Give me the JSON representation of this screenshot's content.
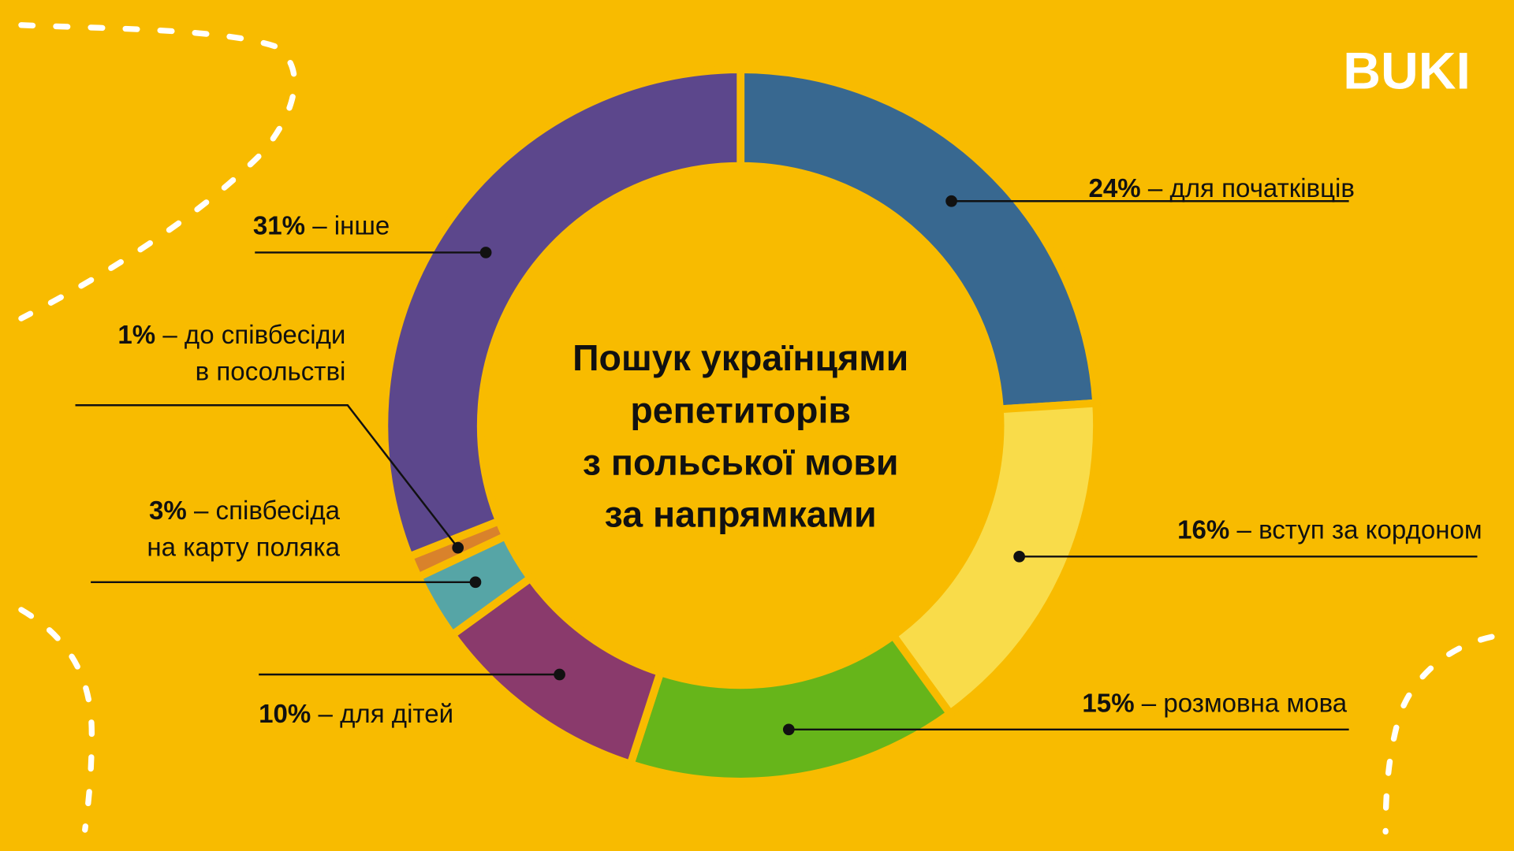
{
  "logo": "BUKI",
  "chart_data": {
    "type": "donut",
    "title": "Пошук українцями\nрепетиторів\nз польської мови\nза напрямками",
    "categories": [
      "– для початківців",
      "– вступ за кордоном",
      "– розмовна мова",
      "– для дітей",
      "– співбесіда\nна карту поляка",
      "– до співбесіди\nв посольстві",
      "– інше"
    ],
    "values": [
      24,
      16,
      15,
      10,
      3,
      1,
      31
    ],
    "value_labels": [
      "24%",
      "16%",
      "15%",
      "10%",
      "3%",
      "1%",
      "31%"
    ],
    "colors": [
      "#386890",
      "#f9dc4a",
      "#66b51a",
      "#8a3a6c",
      "#56a5a6",
      "#d9822b",
      "#5c478c"
    ]
  }
}
